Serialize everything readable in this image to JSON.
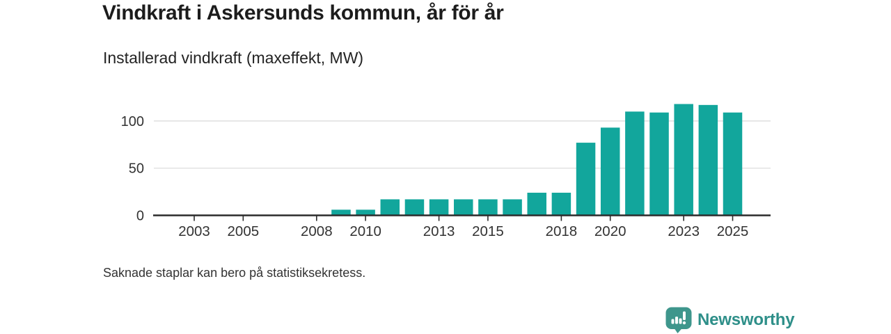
{
  "header": {
    "title": "Vindkraft i Askersunds kommun, år för år",
    "subtitle": "Installerad vindkraft (maxeffekt, MW)"
  },
  "footer": {
    "note": "Saknade staplar kan bero på statistiksekretess.",
    "brand": "Newsworthy"
  },
  "colors": {
    "bar": "#12a69c",
    "grid": "#d9d9d9",
    "axis": "#2b2b2b",
    "tick_label": "#333333",
    "logo_badge": "#3e968c",
    "logo_glyph": "#ffffff",
    "logo_text": "#2e8f89"
  },
  "chart_data": {
    "type": "bar",
    "title": "Vindkraft i Askersunds kommun, år för år",
    "subtitle": "Installerad vindkraft (maxeffekt, MW)",
    "xlabel": "",
    "ylabel": "Installerad vindkraft (maxeffekt, MW)",
    "x": [
      2009,
      2010,
      2011,
      2012,
      2013,
      2014,
      2015,
      2016,
      2017,
      2018,
      2019,
      2020,
      2021,
      2022,
      2023,
      2024,
      2025
    ],
    "values": [
      6,
      6,
      17,
      17,
      17,
      17,
      17,
      17,
      24,
      24,
      77,
      93,
      110,
      109,
      118,
      117,
      109
    ],
    "series_note": "years 2001-2008 shown without bars (missing / zero)",
    "xticks": [
      2003,
      2005,
      2008,
      2010,
      2013,
      2015,
      2018,
      2020,
      2023,
      2025
    ],
    "yticks": [
      0,
      50,
      100
    ],
    "xlim": [
      2001.35,
      2026.55
    ],
    "ylim": [
      0,
      132
    ],
    "grid": "horizontal-only",
    "legend": "none"
  }
}
